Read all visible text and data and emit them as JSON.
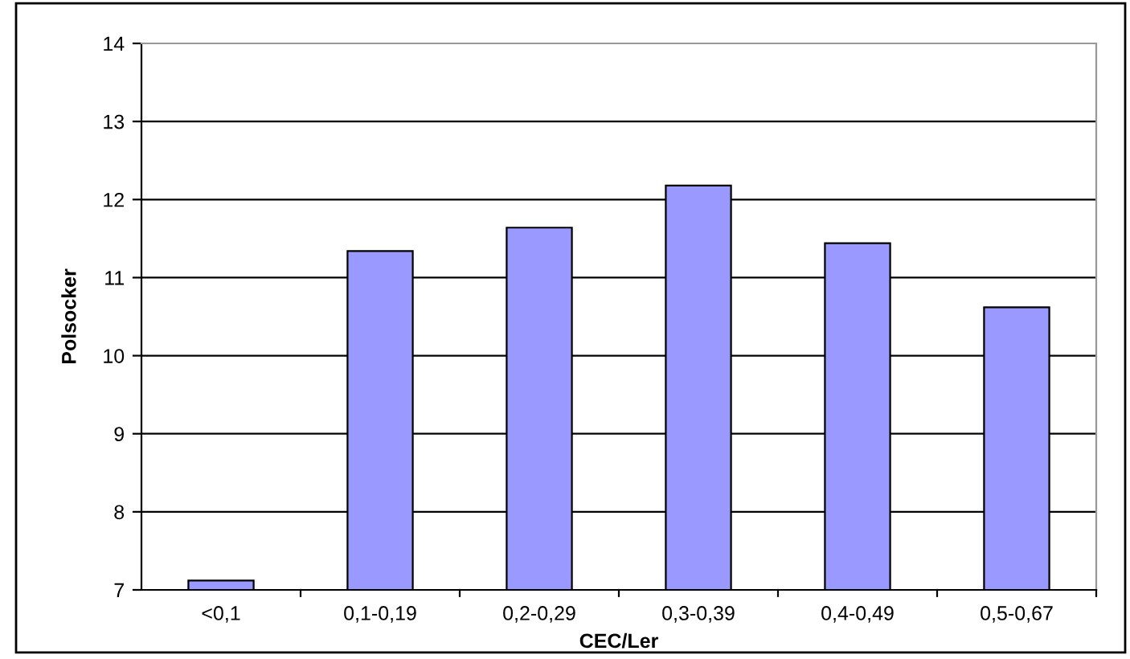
{
  "chart_data": {
    "type": "bar",
    "xlabel": "CEC/Ler",
    "ylabel": "Polsocker",
    "categories": [
      "<0,1",
      "0,1-0,19",
      "0,2-0,29",
      "0,3-0,39",
      "0,4-0,49",
      "0,5-0,67"
    ],
    "values": [
      7.12,
      11.34,
      11.64,
      12.18,
      11.44,
      10.62
    ],
    "color": "#9999ff",
    "ylim": [
      7,
      14
    ],
    "yticks": [
      7,
      8,
      9,
      10,
      11,
      12,
      13,
      14
    ],
    "grid": "y",
    "legend": false
  }
}
